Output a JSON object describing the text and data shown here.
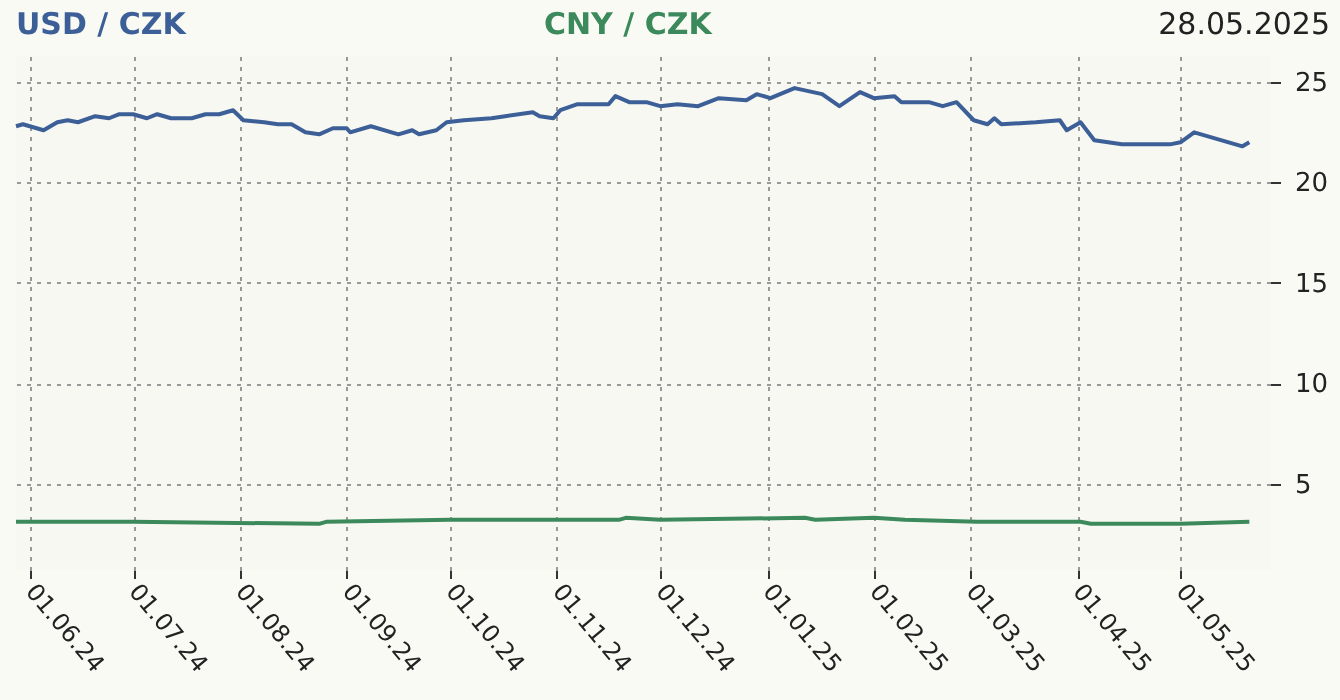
{
  "chart_data": {
    "type": "line",
    "title": "28.05.2025",
    "legend": "top",
    "xlim": [
      "2024-05-28",
      "2025-05-27"
    ],
    "xticks": [
      {
        "value": "2024-06-01",
        "label": "01.06.24"
      },
      {
        "value": "2024-07-01",
        "label": "01.07.24"
      },
      {
        "value": "2024-08-01",
        "label": "01.08.24"
      },
      {
        "value": "2024-09-01",
        "label": "01.09.24"
      },
      {
        "value": "2024-10-01",
        "label": "01.10.24"
      },
      {
        "value": "2024-11-01",
        "label": "01.11.24"
      },
      {
        "value": "2024-12-01",
        "label": "01.12.24"
      },
      {
        "value": "2025-01-01",
        "label": "01.01.25"
      },
      {
        "value": "2025-02-01",
        "label": "01.02.25"
      },
      {
        "value": "2025-03-01",
        "label": "01.03.25"
      },
      {
        "value": "2025-04-01",
        "label": "01.04.25"
      },
      {
        "value": "2025-05-01",
        "label": "01.05.25"
      }
    ],
    "ylim": [
      0.7,
      26.3
    ],
    "yticks": [
      5,
      10,
      15,
      20,
      25
    ],
    "grid": true,
    "series": [
      {
        "name": "USD / CZK",
        "color": "#3d5f98",
        "x": [
          "2024-05-28",
          "2024-05-30",
          "2024-06-05",
          "2024-06-09",
          "2024-06-12",
          "2024-06-15",
          "2024-06-20",
          "2024-06-24",
          "2024-06-27",
          "2024-07-01",
          "2024-07-05",
          "2024-07-08",
          "2024-07-12",
          "2024-07-18",
          "2024-07-22",
          "2024-07-26",
          "2024-07-30",
          "2024-08-02",
          "2024-08-08",
          "2024-08-12",
          "2024-08-16",
          "2024-08-20",
          "2024-08-24",
          "2024-08-28",
          "2024-09-01",
          "2024-09-02",
          "2024-09-08",
          "2024-09-16",
          "2024-09-20",
          "2024-09-22",
          "2024-09-27",
          "2024-09-30",
          "2024-10-05",
          "2024-10-13",
          "2024-10-17",
          "2024-10-25",
          "2024-10-27",
          "2024-10-31",
          "2024-11-02",
          "2024-11-07",
          "2024-11-16",
          "2024-11-18",
          "2024-11-22",
          "2024-11-27",
          "2024-12-01",
          "2024-12-06",
          "2024-12-12",
          "2024-12-18",
          "2024-12-26",
          "2024-12-29",
          "2025-01-02",
          "2025-01-09",
          "2025-01-17",
          "2025-01-22",
          "2025-01-28",
          "2025-02-01",
          "2025-02-07",
          "2025-02-09",
          "2025-02-17",
          "2025-02-21",
          "2025-02-25",
          "2025-03-02",
          "2025-03-06",
          "2025-03-08",
          "2025-03-10",
          "2025-03-20",
          "2025-03-27",
          "2025-03-29",
          "2025-04-02",
          "2025-04-06",
          "2025-04-14",
          "2025-04-25",
          "2025-04-28",
          "2025-05-01",
          "2025-05-05",
          "2025-05-11",
          "2025-05-15",
          "2025-05-19",
          "2025-05-21"
        ],
        "values": [
          22.8,
          22.9,
          22.6,
          23.0,
          23.1,
          23.0,
          23.3,
          23.2,
          23.4,
          23.4,
          23.2,
          23.4,
          23.2,
          23.2,
          23.4,
          23.4,
          23.6,
          23.1,
          23.0,
          22.9,
          22.9,
          22.5,
          22.4,
          22.7,
          22.7,
          22.5,
          22.8,
          22.4,
          22.6,
          22.4,
          22.6,
          23.0,
          23.1,
          23.2,
          23.3,
          23.5,
          23.3,
          23.2,
          23.6,
          23.9,
          23.9,
          24.3,
          24.0,
          24.0,
          23.8,
          23.9,
          23.8,
          24.2,
          24.1,
          24.4,
          24.2,
          24.7,
          24.4,
          23.8,
          24.5,
          24.2,
          24.3,
          24.0,
          24.0,
          23.8,
          24.0,
          23.1,
          22.9,
          23.2,
          22.9,
          23.0,
          23.1,
          22.6,
          23.0,
          22.1,
          21.9,
          21.9,
          21.9,
          22.0,
          22.5,
          22.2,
          22.0,
          21.8,
          22.0
        ]
      },
      {
        "name": "CNY / CZK",
        "color": "#3c8a5c",
        "x": [
          "2024-05-28",
          "2024-07-01",
          "2024-08-24",
          "2024-08-26",
          "2024-10-01",
          "2024-11-19",
          "2024-11-21",
          "2024-12-01",
          "2025-01-12",
          "2025-01-15",
          "2025-02-01",
          "2025-02-10",
          "2025-03-03",
          "2025-04-02",
          "2025-04-05",
          "2025-05-01",
          "2025-05-21"
        ],
        "values": [
          3.1,
          3.1,
          3.0,
          3.1,
          3.2,
          3.2,
          3.3,
          3.2,
          3.3,
          3.2,
          3.3,
          3.2,
          3.1,
          3.1,
          3.0,
          3.0,
          3.1
        ]
      }
    ]
  }
}
